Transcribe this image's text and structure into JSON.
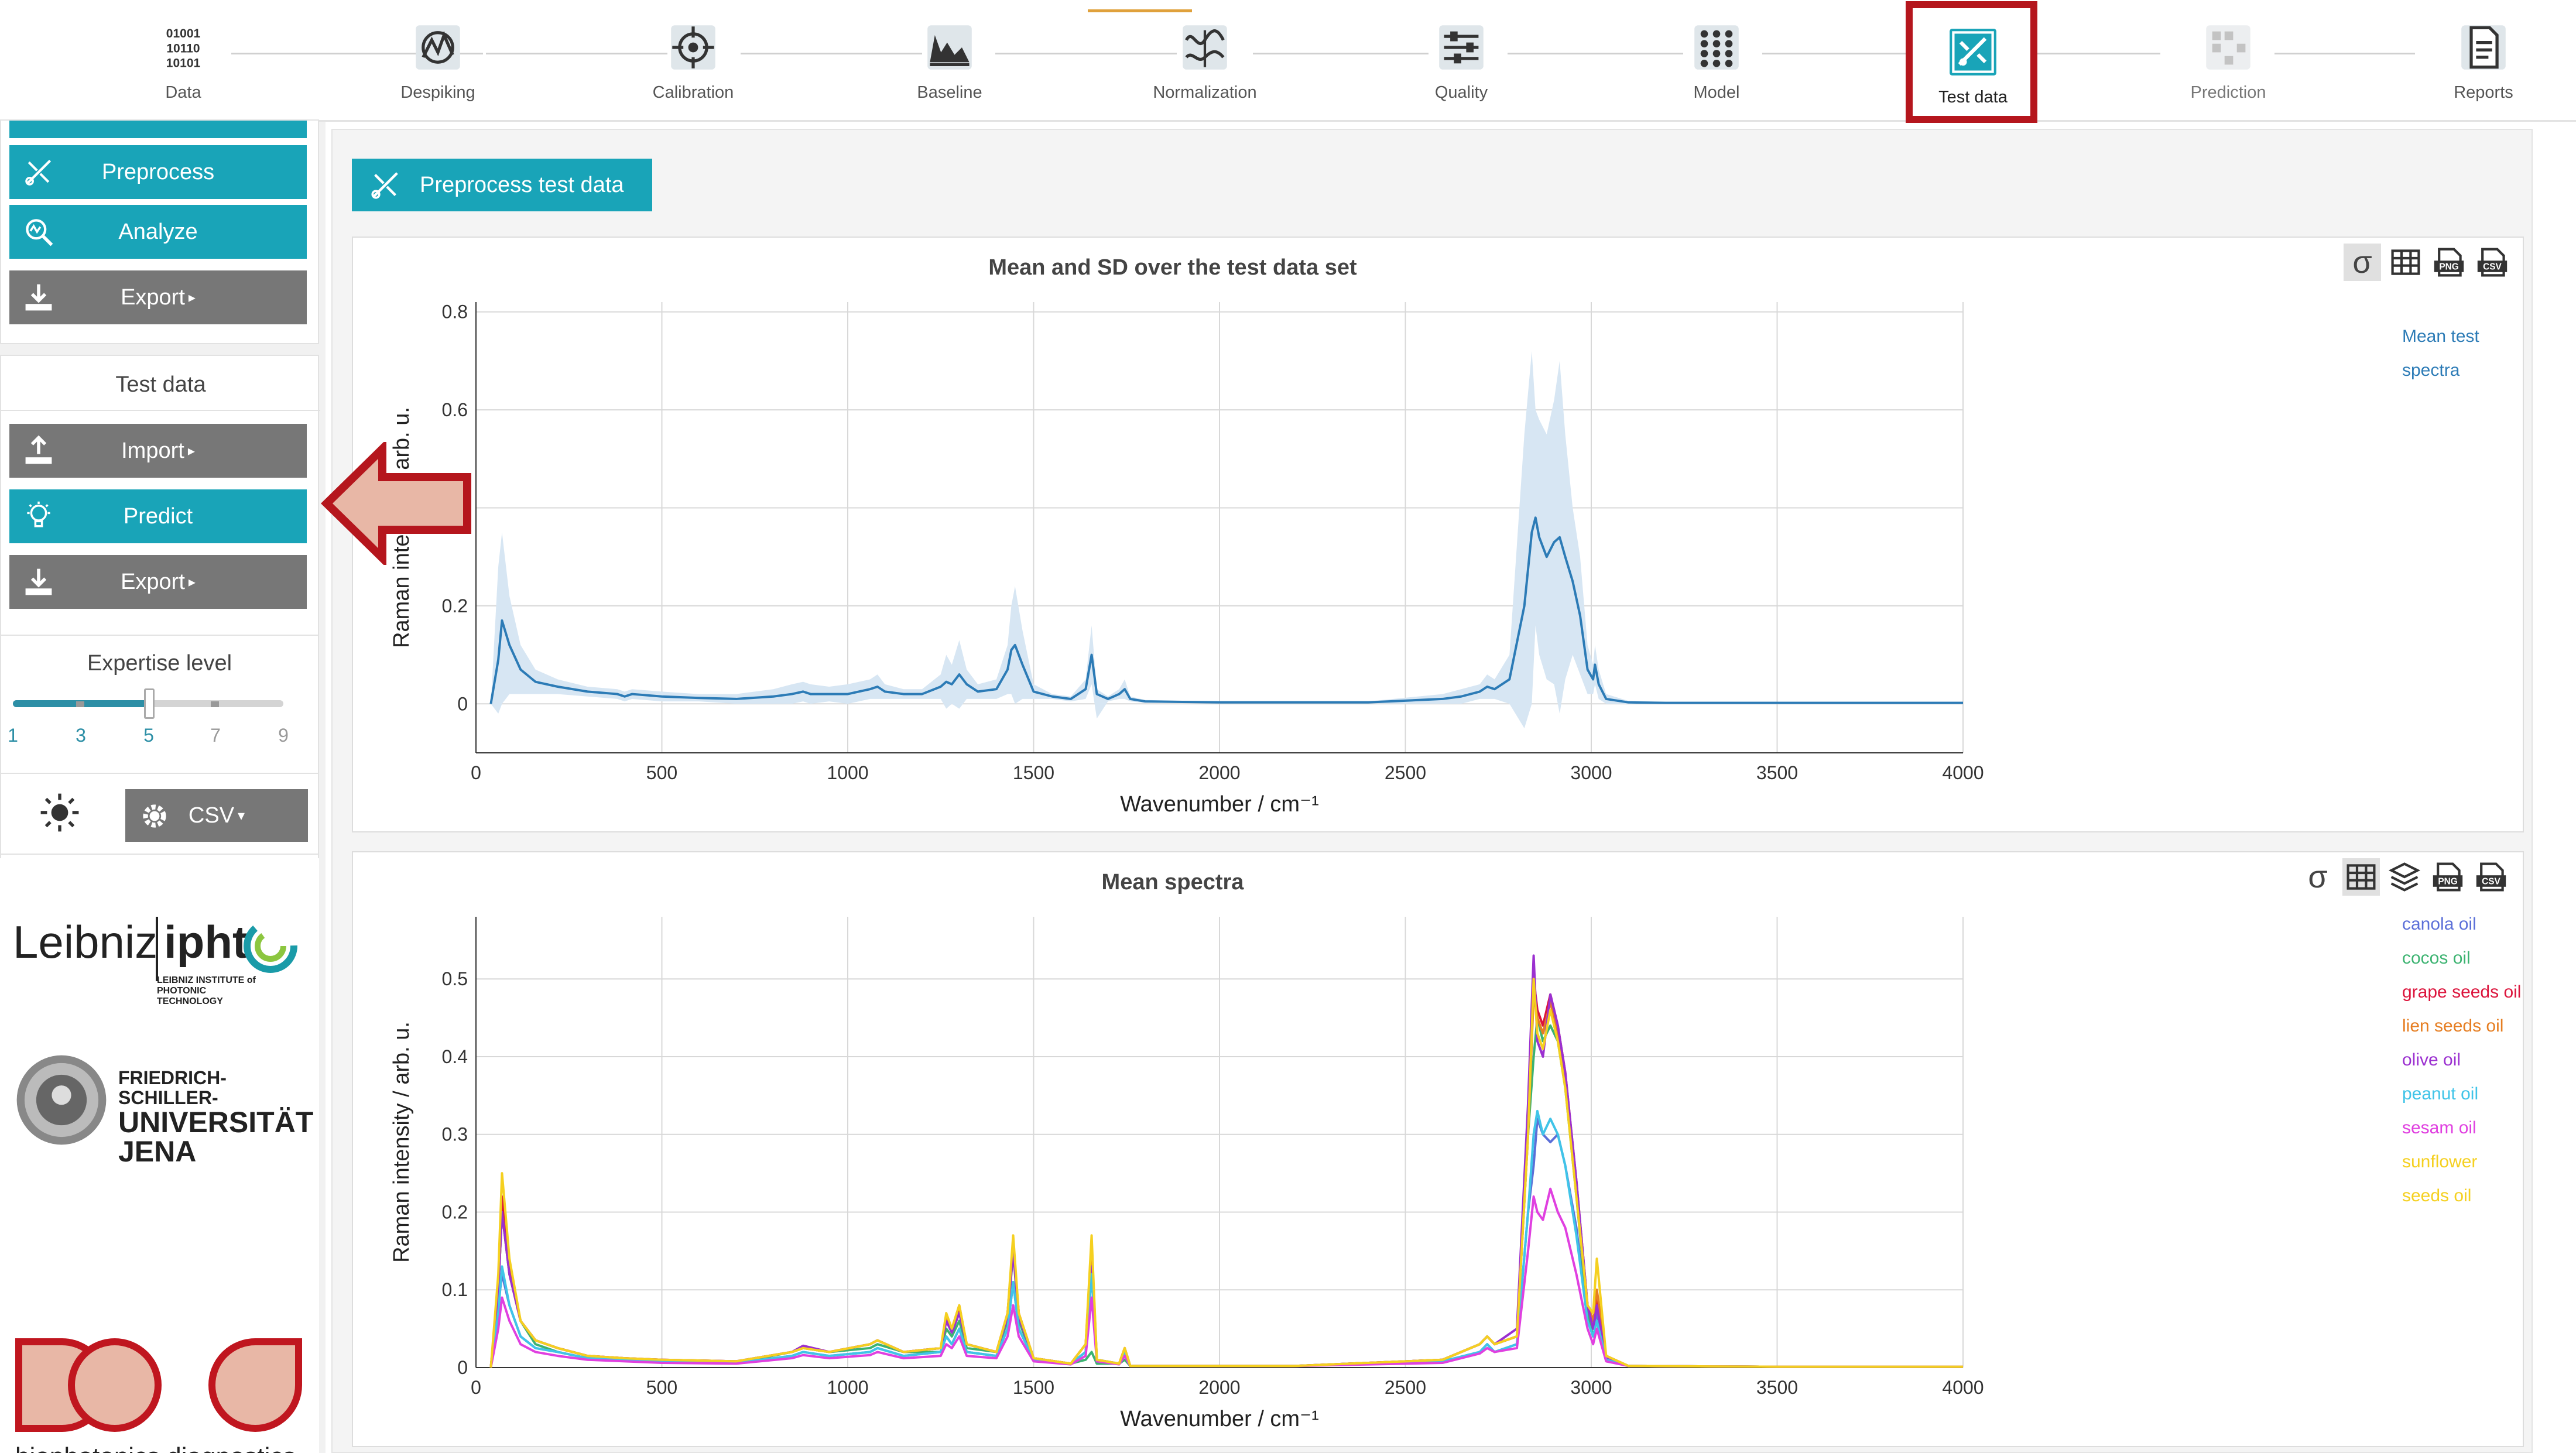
{
  "workflow": {
    "steps": [
      {
        "label": "Data",
        "icon": "binary-data-icon",
        "state": "done"
      },
      {
        "label": "Despiking",
        "icon": "despiking-icon",
        "state": "done"
      },
      {
        "label": "Calibration",
        "icon": "calibration-target-icon",
        "state": "done"
      },
      {
        "label": "Baseline",
        "icon": "baseline-spectrum-icon",
        "state": "done"
      },
      {
        "label": "Normalization",
        "icon": "normalization-icon",
        "state": "done"
      },
      {
        "label": "Quality",
        "icon": "quality-sliders-icon",
        "state": "done"
      },
      {
        "label": "Model",
        "icon": "model-grid-icon",
        "state": "done"
      },
      {
        "label": "Test data",
        "icon": "test-data-icon",
        "state": "active"
      },
      {
        "label": "Prediction",
        "icon": "prediction-icon",
        "state": "disabled"
      },
      {
        "label": "Reports",
        "icon": "report-document-icon",
        "state": "done"
      }
    ]
  },
  "sidebar": {
    "model_section": {
      "preprocess_label": "Preprocess",
      "analyze_label": "Analyze",
      "export_label": "Export"
    },
    "test_data_section": {
      "title": "Test data",
      "import_label": "Import",
      "predict_label": "Predict",
      "export_label": "Export"
    },
    "expertise": {
      "title": "Expertise level",
      "ticks": [
        "1",
        "3",
        "5",
        "7",
        "9"
      ],
      "value": 5
    },
    "theme_icon": "sun-icon",
    "format_label": "CSV",
    "logos": {
      "leibniz": "Leibniz ipht",
      "leibniz_sub": "LEIBNIZ INSTITUTE of PHOTONIC TECHNOLOGY",
      "jena_line1": "FRIEDRICH-SCHILLER-",
      "jena_line2": "UNIVERSITÄT",
      "jena_line3": "JENA",
      "bpd": "biophotonics diagnostics"
    }
  },
  "main": {
    "preprocess_test_label": "Preprocess test data",
    "tools_sigma": "σ",
    "colors": {
      "accent": "#19a4b8",
      "mean_line": "#2c7bb6",
      "sd_band": "#d7e6f3"
    }
  },
  "chart_data": [
    {
      "type": "area",
      "title": "Mean and SD over the test data set",
      "xlabel": "Wavenumber / cm⁻¹",
      "ylabel": "Raman intensity / arb. u.",
      "xlim": [
        0,
        4000
      ],
      "ylim": [
        -0.1,
        0.82
      ],
      "xticks": [
        0,
        500,
        1000,
        1500,
        2000,
        2500,
        3000,
        3500,
        4000
      ],
      "yticks": [
        0,
        0.2,
        0.4,
        0.6,
        0.8
      ],
      "grid": true,
      "legend_position": "right",
      "series": [
        {
          "name": "Mean test spectra",
          "color": "#2c7bb6",
          "x": [
            40,
            60,
            70,
            90,
            120,
            160,
            220,
            300,
            380,
            400,
            420,
            500,
            600,
            700,
            800,
            850,
            880,
            900,
            950,
            1000,
            1060,
            1080,
            1100,
            1150,
            1200,
            1250,
            1265,
            1280,
            1300,
            1320,
            1350,
            1400,
            1430,
            1440,
            1450,
            1470,
            1500,
            1550,
            1600,
            1640,
            1656,
            1670,
            1700,
            1730,
            1745,
            1760,
            1800,
            1900,
            2000,
            2200,
            2400,
            2600,
            2650,
            2700,
            2720,
            2740,
            2780,
            2820,
            2840,
            2850,
            2860,
            2880,
            2900,
            2915,
            2930,
            2950,
            2970,
            2990,
            3005,
            3010,
            3020,
            3040,
            3100,
            3200,
            3500,
            4000
          ],
          "y": [
            0.0,
            0.09,
            0.17,
            0.12,
            0.07,
            0.045,
            0.035,
            0.025,
            0.02,
            0.015,
            0.02,
            0.015,
            0.012,
            0.01,
            0.015,
            0.02,
            0.025,
            0.02,
            0.02,
            0.02,
            0.03,
            0.035,
            0.025,
            0.02,
            0.02,
            0.035,
            0.045,
            0.04,
            0.06,
            0.04,
            0.025,
            0.03,
            0.07,
            0.11,
            0.12,
            0.08,
            0.025,
            0.015,
            0.01,
            0.03,
            0.1,
            0.02,
            0.01,
            0.02,
            0.03,
            0.01,
            0.005,
            0.004,
            0.003,
            0.003,
            0.003,
            0.01,
            0.015,
            0.025,
            0.035,
            0.03,
            0.05,
            0.2,
            0.35,
            0.38,
            0.34,
            0.3,
            0.33,
            0.34,
            0.3,
            0.25,
            0.18,
            0.07,
            0.05,
            0.08,
            0.04,
            0.01,
            0.003,
            0.002,
            0.002,
            0.002
          ],
          "sd_upper": [
            0.0,
            0.28,
            0.35,
            0.22,
            0.12,
            0.07,
            0.05,
            0.035,
            0.03,
            0.025,
            0.03,
            0.025,
            0.02,
            0.02,
            0.03,
            0.04,
            0.045,
            0.04,
            0.035,
            0.04,
            0.05,
            0.06,
            0.04,
            0.03,
            0.03,
            0.06,
            0.1,
            0.08,
            0.13,
            0.07,
            0.04,
            0.05,
            0.12,
            0.2,
            0.24,
            0.15,
            0.04,
            0.02,
            0.015,
            0.05,
            0.16,
            0.03,
            0.015,
            0.03,
            0.05,
            0.015,
            0.008,
            0.006,
            0.005,
            0.005,
            0.005,
            0.02,
            0.03,
            0.04,
            0.06,
            0.05,
            0.1,
            0.55,
            0.72,
            0.6,
            0.58,
            0.55,
            0.62,
            0.7,
            0.55,
            0.4,
            0.3,
            0.12,
            0.08,
            0.12,
            0.07,
            0.02,
            0.006,
            0.004,
            0.004,
            0.004
          ],
          "sd_lower": [
            0.0,
            -0.02,
            0.0,
            0.02,
            0.02,
            0.02,
            0.02,
            0.015,
            0.01,
            0.005,
            0.01,
            0.005,
            0.005,
            0.0,
            0.0,
            0.0,
            0.005,
            0.0,
            0.005,
            0.0,
            0.01,
            0.01,
            0.01,
            0.01,
            0.01,
            0.01,
            -0.01,
            0.0,
            -0.01,
            0.01,
            0.01,
            0.01,
            0.02,
            0.02,
            0.0,
            0.01,
            0.01,
            0.01,
            0.005,
            0.01,
            0.04,
            -0.03,
            0.005,
            0.01,
            0.01,
            0.005,
            0.002,
            0.002,
            0.001,
            0.001,
            0.001,
            0.0,
            0.0,
            0.01,
            0.01,
            0.01,
            0.0,
            -0.05,
            0.0,
            0.16,
            0.1,
            0.05,
            0.04,
            -0.02,
            0.05,
            0.1,
            0.06,
            0.02,
            0.02,
            0.04,
            0.01,
            0.0,
            0.0,
            0.0,
            0.0,
            0.0
          ]
        }
      ]
    },
    {
      "type": "line",
      "title": "Mean spectra",
      "xlabel": "Wavenumber / cm⁻¹",
      "ylabel": "Raman intensity / arb. u.",
      "xlim": [
        0,
        4000
      ],
      "ylim": [
        0,
        0.58
      ],
      "xticks": [
        0,
        500,
        1000,
        1500,
        2000,
        2500,
        3000,
        3500,
        4000
      ],
      "yticks": [
        0,
        0.1,
        0.2,
        0.3,
        0.4,
        0.5
      ],
      "grid": true,
      "legend_position": "right",
      "x": [
        40,
        60,
        70,
        90,
        120,
        160,
        220,
        300,
        400,
        500,
        700,
        850,
        880,
        950,
        1060,
        1080,
        1150,
        1250,
        1265,
        1280,
        1300,
        1320,
        1400,
        1430,
        1445,
        1460,
        1500,
        1600,
        1640,
        1656,
        1670,
        1730,
        1745,
        1760,
        1900,
        2200,
        2600,
        2700,
        2720,
        2740,
        2800,
        2830,
        2845,
        2855,
        2870,
        2890,
        2910,
        2930,
        2960,
        2990,
        3005,
        3015,
        3040,
        3100,
        3500,
        4000
      ],
      "series": [
        {
          "name": "canola oil",
          "color": "#5b6fd8",
          "y": [
            0.0,
            0.08,
            0.12,
            0.08,
            0.04,
            0.025,
            0.02,
            0.012,
            0.01,
            0.008,
            0.006,
            0.015,
            0.02,
            0.015,
            0.02,
            0.025,
            0.015,
            0.02,
            0.04,
            0.03,
            0.05,
            0.02,
            0.015,
            0.05,
            0.11,
            0.05,
            0.01,
            0.005,
            0.02,
            0.12,
            0.01,
            0.005,
            0.02,
            0.002,
            0.002,
            0.002,
            0.008,
            0.02,
            0.03,
            0.02,
            0.03,
            0.2,
            0.26,
            0.32,
            0.3,
            0.29,
            0.3,
            0.26,
            0.18,
            0.06,
            0.05,
            0.07,
            0.01,
            0.002,
            0.001,
            0.001
          ]
        },
        {
          "name": "cocos oil",
          "color": "#3cb371",
          "y": [
            0.0,
            0.1,
            0.2,
            0.12,
            0.06,
            0.03,
            0.02,
            0.012,
            0.01,
            0.008,
            0.006,
            0.02,
            0.025,
            0.02,
            0.025,
            0.03,
            0.02,
            0.02,
            0.05,
            0.04,
            0.06,
            0.025,
            0.02,
            0.06,
            0.15,
            0.06,
            0.012,
            0.005,
            0.01,
            0.02,
            0.005,
            0.005,
            0.01,
            0.002,
            0.002,
            0.002,
            0.01,
            0.03,
            0.04,
            0.03,
            0.04,
            0.3,
            0.4,
            0.45,
            0.42,
            0.44,
            0.42,
            0.36,
            0.22,
            0.07,
            0.04,
            0.06,
            0.01,
            0.002,
            0.001,
            0.001
          ]
        },
        {
          "name": "grape seeds oil",
          "color": "#dc143c",
          "y": [
            0.0,
            0.1,
            0.22,
            0.13,
            0.06,
            0.035,
            0.025,
            0.015,
            0.012,
            0.01,
            0.008,
            0.02,
            0.028,
            0.02,
            0.03,
            0.035,
            0.02,
            0.025,
            0.06,
            0.05,
            0.075,
            0.03,
            0.02,
            0.07,
            0.16,
            0.07,
            0.012,
            0.005,
            0.03,
            0.15,
            0.01,
            0.005,
            0.025,
            0.002,
            0.002,
            0.002,
            0.01,
            0.03,
            0.04,
            0.03,
            0.04,
            0.32,
            0.5,
            0.46,
            0.44,
            0.48,
            0.44,
            0.38,
            0.24,
            0.08,
            0.06,
            0.09,
            0.015,
            0.002,
            0.001,
            0.001
          ]
        },
        {
          "name": "lien seeds oil",
          "color": "#e67e22",
          "y": [
            0.0,
            0.1,
            0.2,
            0.12,
            0.06,
            0.035,
            0.025,
            0.015,
            0.012,
            0.01,
            0.008,
            0.02,
            0.025,
            0.02,
            0.03,
            0.035,
            0.02,
            0.025,
            0.065,
            0.05,
            0.08,
            0.03,
            0.02,
            0.07,
            0.16,
            0.07,
            0.012,
            0.005,
            0.03,
            0.16,
            0.01,
            0.005,
            0.025,
            0.002,
            0.002,
            0.002,
            0.01,
            0.03,
            0.04,
            0.03,
            0.04,
            0.3,
            0.48,
            0.45,
            0.43,
            0.47,
            0.43,
            0.37,
            0.23,
            0.08,
            0.06,
            0.1,
            0.015,
            0.002,
            0.001,
            0.001
          ]
        },
        {
          "name": "olive oil",
          "color": "#9b30d0",
          "y": [
            0.0,
            0.1,
            0.2,
            0.12,
            0.06,
            0.035,
            0.025,
            0.015,
            0.012,
            0.01,
            0.008,
            0.02,
            0.028,
            0.02,
            0.03,
            0.035,
            0.02,
            0.025,
            0.06,
            0.045,
            0.07,
            0.03,
            0.02,
            0.065,
            0.15,
            0.065,
            0.012,
            0.005,
            0.02,
            0.13,
            0.01,
            0.005,
            0.02,
            0.002,
            0.002,
            0.002,
            0.01,
            0.03,
            0.04,
            0.03,
            0.05,
            0.34,
            0.53,
            0.42,
            0.4,
            0.48,
            0.44,
            0.38,
            0.24,
            0.08,
            0.05,
            0.08,
            0.012,
            0.002,
            0.001,
            0.001
          ]
        },
        {
          "name": "peanut oil",
          "color": "#40c4e8",
          "y": [
            0.0,
            0.07,
            0.13,
            0.08,
            0.04,
            0.025,
            0.02,
            0.012,
            0.01,
            0.008,
            0.006,
            0.015,
            0.02,
            0.015,
            0.02,
            0.025,
            0.015,
            0.02,
            0.04,
            0.03,
            0.05,
            0.02,
            0.015,
            0.05,
            0.11,
            0.05,
            0.01,
            0.005,
            0.02,
            0.12,
            0.01,
            0.005,
            0.02,
            0.002,
            0.002,
            0.002,
            0.008,
            0.02,
            0.03,
            0.02,
            0.03,
            0.2,
            0.3,
            0.33,
            0.3,
            0.32,
            0.3,
            0.26,
            0.17,
            0.06,
            0.04,
            0.06,
            0.01,
            0.002,
            0.001,
            0.001
          ]
        },
        {
          "name": "sesam oil",
          "color": "#e040e0",
          "y": [
            0.0,
            0.05,
            0.09,
            0.06,
            0.03,
            0.02,
            0.015,
            0.01,
            0.008,
            0.006,
            0.005,
            0.012,
            0.016,
            0.012,
            0.016,
            0.02,
            0.012,
            0.015,
            0.03,
            0.025,
            0.04,
            0.015,
            0.012,
            0.04,
            0.08,
            0.04,
            0.008,
            0.004,
            0.015,
            0.09,
            0.008,
            0.004,
            0.015,
            0.002,
            0.002,
            0.002,
            0.006,
            0.018,
            0.025,
            0.02,
            0.025,
            0.15,
            0.22,
            0.2,
            0.19,
            0.23,
            0.2,
            0.18,
            0.12,
            0.05,
            0.03,
            0.05,
            0.008,
            0.002,
            0.001,
            0.001
          ]
        },
        {
          "name": "sunflower seeds oil",
          "color": "#f5d020",
          "y": [
            0.0,
            0.12,
            0.25,
            0.14,
            0.06,
            0.035,
            0.025,
            0.015,
            0.012,
            0.01,
            0.008,
            0.02,
            0.025,
            0.02,
            0.03,
            0.035,
            0.02,
            0.025,
            0.07,
            0.05,
            0.08,
            0.03,
            0.02,
            0.07,
            0.17,
            0.07,
            0.012,
            0.005,
            0.03,
            0.17,
            0.01,
            0.005,
            0.025,
            0.002,
            0.002,
            0.002,
            0.01,
            0.03,
            0.04,
            0.03,
            0.04,
            0.3,
            0.5,
            0.43,
            0.41,
            0.46,
            0.42,
            0.36,
            0.22,
            0.08,
            0.07,
            0.14,
            0.015,
            0.002,
            0.001,
            0.001
          ]
        }
      ]
    }
  ]
}
